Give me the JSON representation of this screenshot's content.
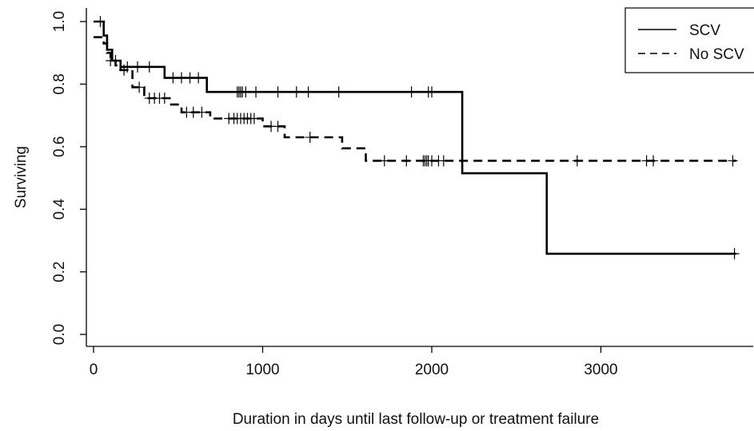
{
  "chart_data": {
    "type": "line",
    "subtype": "kaplan-meier-survival",
    "title": "",
    "xlabel": "Duration in days until last follow-up or treatment failure",
    "ylabel": "Surviving",
    "xlim": [
      0,
      3900
    ],
    "ylim": [
      0,
      1.0
    ],
    "xticks": [
      "0",
      "1000",
      "2000",
      "3000"
    ],
    "yticks": [
      "0.0",
      "0.2",
      "0.4",
      "0.6",
      "0.8",
      "1.0"
    ],
    "grid": false,
    "legend": {
      "position": "top-right",
      "entries": [
        "SCV",
        "No SCV"
      ]
    },
    "series": [
      {
        "name": "SCV",
        "line_style": "solid",
        "steps": [
          [
            0,
            1.0
          ],
          [
            60,
            0.955
          ],
          [
            80,
            0.91
          ],
          [
            110,
            0.875
          ],
          [
            160,
            0.855
          ],
          [
            420,
            0.82
          ],
          [
            670,
            0.775
          ],
          [
            2180,
            0.515
          ],
          [
            2680,
            0.258
          ],
          [
            3800,
            0.258
          ]
        ],
        "censored": [
          [
            40,
            1.0
          ],
          [
            130,
            0.875
          ],
          [
            200,
            0.855
          ],
          [
            260,
            0.855
          ],
          [
            330,
            0.855
          ],
          [
            470,
            0.82
          ],
          [
            520,
            0.82
          ],
          [
            570,
            0.82
          ],
          [
            620,
            0.82
          ],
          [
            850,
            0.775
          ],
          [
            860,
            0.775
          ],
          [
            870,
            0.775
          ],
          [
            880,
            0.775
          ],
          [
            900,
            0.775
          ],
          [
            960,
            0.775
          ],
          [
            1090,
            0.775
          ],
          [
            1200,
            0.775
          ],
          [
            1270,
            0.775
          ],
          [
            1450,
            0.775
          ],
          [
            1880,
            0.775
          ],
          [
            1980,
            0.775
          ],
          [
            2000,
            0.775
          ],
          [
            3790,
            0.258
          ]
        ]
      },
      {
        "name": "No SCV",
        "line_style": "dashed",
        "steps": [
          [
            0,
            0.95
          ],
          [
            60,
            0.93
          ],
          [
            80,
            0.9
          ],
          [
            100,
            0.875
          ],
          [
            130,
            0.86
          ],
          [
            160,
            0.845
          ],
          [
            230,
            0.79
          ],
          [
            300,
            0.755
          ],
          [
            450,
            0.735
          ],
          [
            520,
            0.71
          ],
          [
            690,
            0.69
          ],
          [
            1000,
            0.665
          ],
          [
            1130,
            0.63
          ],
          [
            1470,
            0.595
          ],
          [
            1610,
            0.555
          ],
          [
            3800,
            0.555
          ]
        ],
        "censored": [
          [
            100,
            0.875
          ],
          [
            180,
            0.845
          ],
          [
            270,
            0.79
          ],
          [
            330,
            0.755
          ],
          [
            360,
            0.755
          ],
          [
            390,
            0.755
          ],
          [
            420,
            0.755
          ],
          [
            550,
            0.71
          ],
          [
            590,
            0.71
          ],
          [
            640,
            0.71
          ],
          [
            800,
            0.69
          ],
          [
            830,
            0.69
          ],
          [
            850,
            0.69
          ],
          [
            870,
            0.69
          ],
          [
            890,
            0.69
          ],
          [
            910,
            0.69
          ],
          [
            930,
            0.69
          ],
          [
            950,
            0.69
          ],
          [
            1050,
            0.665
          ],
          [
            1090,
            0.665
          ],
          [
            1280,
            0.63
          ],
          [
            1720,
            0.555
          ],
          [
            1850,
            0.555
          ],
          [
            1950,
            0.555
          ],
          [
            1960,
            0.555
          ],
          [
            1970,
            0.555
          ],
          [
            1980,
            0.555
          ],
          [
            2000,
            0.555
          ],
          [
            2040,
            0.555
          ],
          [
            2070,
            0.555
          ],
          [
            2860,
            0.555
          ],
          [
            3270,
            0.555
          ],
          [
            3310,
            0.555
          ],
          [
            3780,
            0.555
          ]
        ]
      }
    ]
  }
}
